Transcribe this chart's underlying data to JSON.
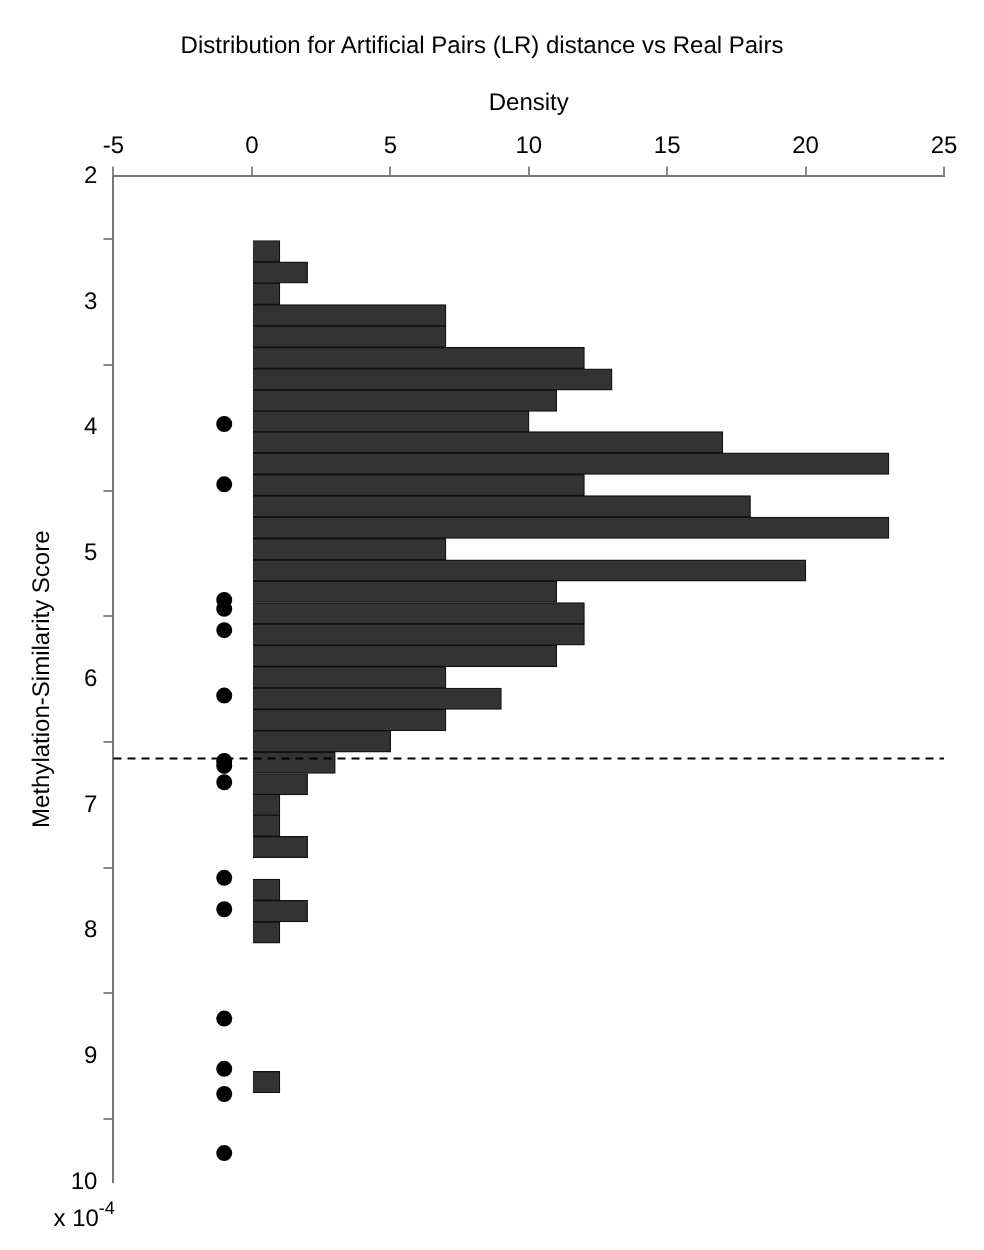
{
  "chart_data": {
    "type": "histogram",
    "orientation": "horizontal",
    "title": "Distribution for Artificial Pairs (LR) distance vs Real Pairs",
    "xlabel": "Density",
    "ylabel": "Methylation-Similarity Score",
    "bins": [
      2.51,
      2.68,
      2.85,
      3.02,
      3.19,
      3.36,
      3.53,
      3.7,
      3.87,
      4.03,
      4.2,
      4.37,
      4.54,
      4.71,
      4.88,
      5.05,
      5.22,
      5.39,
      5.56,
      5.73,
      5.9,
      6.07,
      6.24,
      6.41,
      6.58,
      6.75,
      6.92,
      7.08,
      7.25,
      7.42,
      7.59,
      7.76,
      7.93,
      8.1,
      8.27,
      8.44,
      8.61,
      8.78,
      8.95,
      9.12,
      9.29
    ],
    "series": [
      {
        "color": "#333333",
        "values": [
          1,
          2,
          1,
          7,
          7,
          12,
          13,
          11,
          10,
          17,
          23,
          12,
          18,
          23,
          7,
          20,
          11,
          12,
          12,
          11,
          7,
          9,
          7,
          5,
          3,
          2,
          1,
          1,
          2,
          0,
          1,
          2,
          1,
          0,
          0,
          0,
          0,
          0,
          0,
          1
        ]
      },
      {
        "type": "scatter",
        "color": "#000000",
        "marker": "circle",
        "x": [
          3.97,
          4.45,
          5.37,
          5.44,
          5.61,
          6.13,
          6.65,
          6.69,
          6.82,
          7.58,
          7.83,
          8.7,
          9.1,
          9.3,
          9.77
        ],
        "values": [
          -1,
          -1,
          -1,
          -1,
          -1,
          -1,
          -1,
          -1,
          -1,
          -1,
          -1,
          -1,
          -1,
          -1,
          -1
        ]
      }
    ],
    "xlim": [
      -5,
      25
    ],
    "xticks": [
      -5,
      0,
      5,
      10,
      15,
      20,
      25
    ],
    "ylim": [
      10,
      2
    ],
    "yticks": [
      2,
      3,
      4,
      5,
      6,
      7,
      8,
      9,
      10
    ],
    "grid": false,
    "legend": false,
    "ref_lines": [
      {
        "axis": "y",
        "value": 6.63,
        "line_style": "dashed",
        "color": "#000000"
      }
    ],
    "annotations": [
      "x 10$^{-4}$"
    ]
  }
}
